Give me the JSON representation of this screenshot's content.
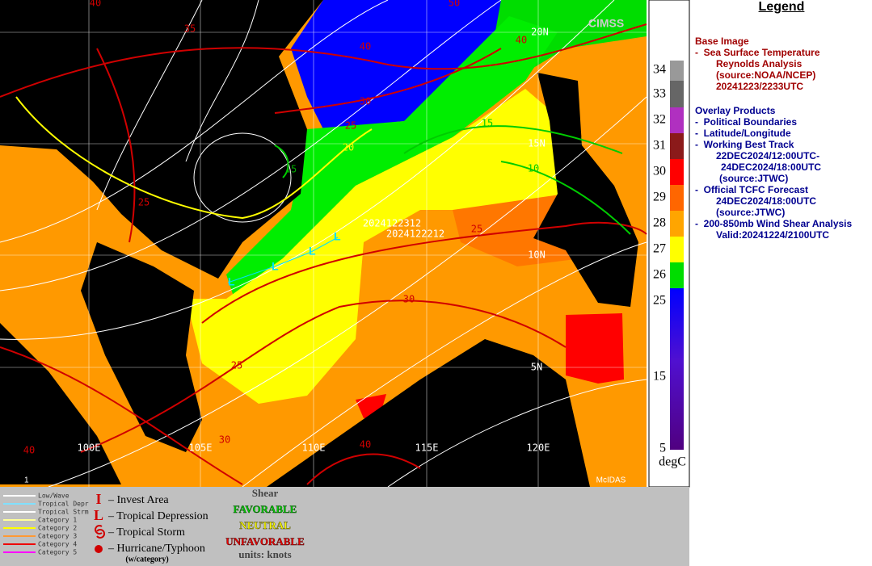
{
  "map": {
    "contour_labels": [
      "40",
      "50",
      "35",
      "40",
      "40",
      "30",
      "25",
      "20",
      "15",
      "15",
      "10",
      "25",
      "25",
      "30",
      "25",
      "30",
      "40",
      "40"
    ],
    "grid_labels": [
      "20N",
      "15N",
      "10N",
      "5N",
      "100E",
      "105E",
      "110E",
      "115E",
      "120E"
    ],
    "track_labels": [
      "2024122312",
      "2024122212"
    ],
    "credit": "McIDAS",
    "logo": "CIMSS",
    "frame": "1"
  },
  "colorbar": {
    "labels": [
      "34",
      "33",
      "32",
      "31",
      "30",
      "29",
      "28",
      "27",
      "26",
      "25",
      "15",
      "5"
    ],
    "unit": "degC"
  },
  "legend": {
    "title": "Legend",
    "base_heading": "Base Image",
    "base_lines": [
      "-  Sea Surface Temperature",
      "Reynolds Analysis",
      "(source:NOAA/NCEP)",
      "20241223/2233UTC"
    ],
    "overlay_heading": "Overlay Products",
    "overlay_lines": [
      "-  Political Boundaries",
      "-  Latitude/Longitude",
      "-  Working Best Track",
      "22DEC2024/12:00UTC-",
      "24DEC2024/18:00UTC",
      "(source:JTWC)",
      "-  Official TCFC Forecast",
      "24DEC2024/18:00UTC",
      "(source:JTWC)",
      "-  200-850mb Wind Shear Analysis",
      "Valid:20241224/2100UTC"
    ]
  },
  "key": {
    "track_types": [
      "Low/Wave",
      "Tropical Depr",
      "Tropical Strm",
      "Category 1",
      "Category 2",
      "Category 3",
      "Category 4",
      "Category 5"
    ],
    "symbols": [
      {
        "icon": "I",
        "text": "– Invest Area"
      },
      {
        "icon": "L",
        "text": "– Tropical Depression"
      },
      {
        "text": "– Tropical Storm"
      },
      {
        "text": "– Hurricane/Typhoon"
      }
    ],
    "category_note": "(w/category)",
    "shear": {
      "title": "Shear",
      "levels": [
        "FAVORABLE",
        "NEUTRAL",
        "UNFAVORABLE"
      ],
      "units": "units: knots"
    }
  }
}
